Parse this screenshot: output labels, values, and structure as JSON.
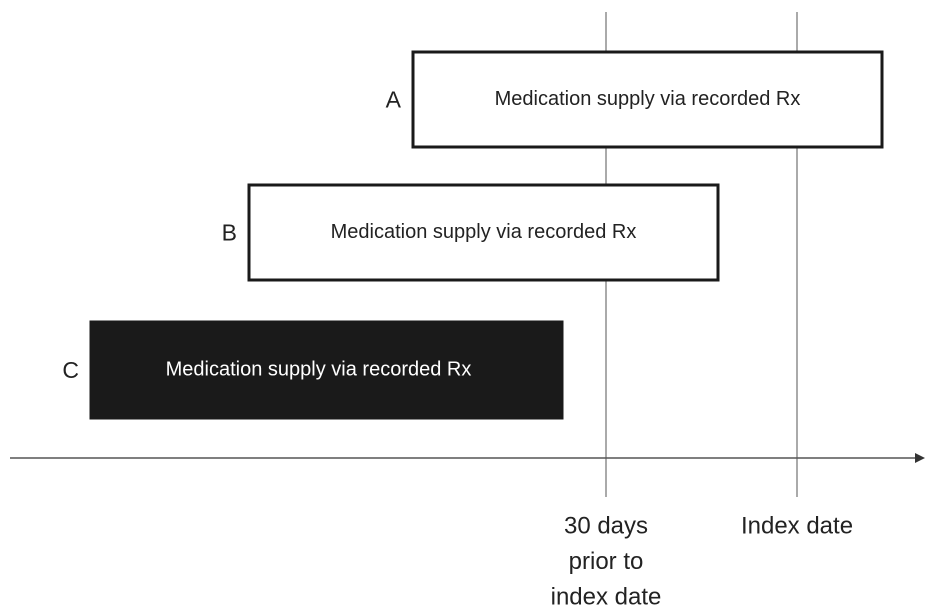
{
  "bars": [
    {
      "label": "A",
      "text": "Medication supply via recorded Rx"
    },
    {
      "label": "B",
      "text": "Medication supply via recorded Rx"
    },
    {
      "label": "C",
      "text": "Medication supply via recorded Rx"
    }
  ],
  "markers": [
    {
      "lines": [
        "30 days",
        "prior to",
        "index date"
      ]
    },
    {
      "lines": [
        "Index date"
      ]
    }
  ]
}
